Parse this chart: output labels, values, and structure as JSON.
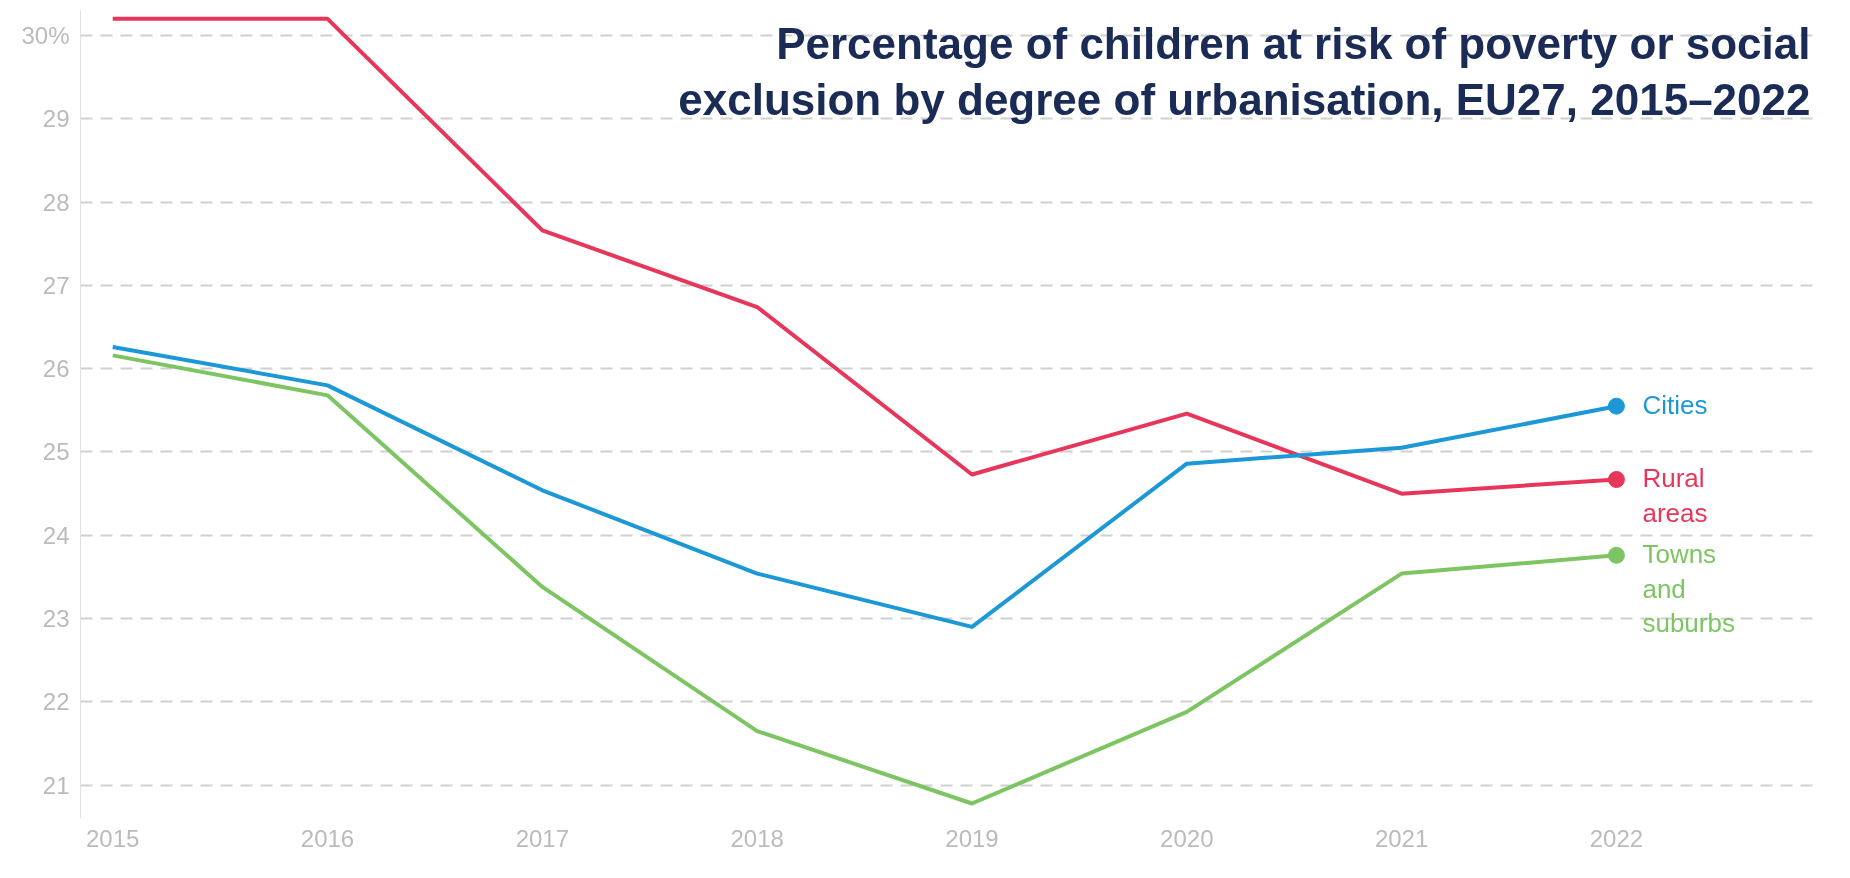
{
  "chart_data": {
    "type": "line",
    "title": "Percentage of children at risk of poverty or social exclusion by degree of urbanisation, EU27, 2015–2022",
    "x": [
      2015,
      2016,
      2017,
      2018,
      2019,
      2020,
      2021,
      2022
    ],
    "series": [
      {
        "name": "Rural areas",
        "color": "#e8365a",
        "values": [
          30.2,
          30.2,
          27.66,
          26.74,
          24.73,
          25.46,
          24.5,
          24.67
        ]
      },
      {
        "name": "Cities",
        "color": "#1b98d5",
        "values": [
          26.26,
          25.8,
          24.54,
          23.54,
          22.9,
          24.86,
          25.05,
          25.55
        ]
      },
      {
        "name": "Towns and suburbs",
        "color": "#7dc462",
        "values": [
          26.16,
          25.68,
          23.38,
          21.65,
          20.78,
          21.88,
          23.54,
          23.76
        ]
      }
    ],
    "xlim": [
      2014.85,
      2022.95
    ],
    "ylim": [
      20.6,
      30.3
    ],
    "xticks": [
      2015,
      2016,
      2017,
      2018,
      2019,
      2020,
      2021,
      2022
    ],
    "yticks": [
      21,
      22,
      23,
      24,
      25,
      26,
      27,
      28,
      29,
      {
        "value": 30,
        "label": "30%"
      }
    ],
    "grid": "y",
    "marker": "none",
    "line_style": "solid"
  }
}
